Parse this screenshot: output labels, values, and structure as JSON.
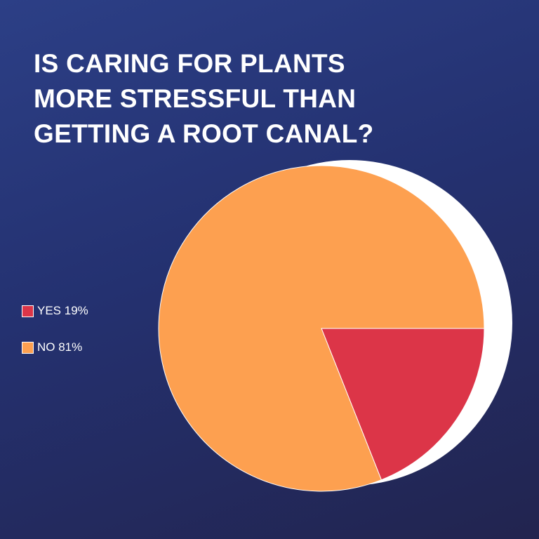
{
  "chart_data": {
    "type": "pie",
    "title": "IS CARING FOR PLANTS MORE STRESSFUL THAN GETTING A ROOT CANAL?",
    "title_lines": [
      "IS CARING FOR PLANTS",
      "MORE STRESSFUL THAN",
      "GETTING A ROOT CANAL?"
    ],
    "categories": [
      "YES",
      "NO"
    ],
    "values": [
      19,
      81
    ],
    "unit": "%",
    "colors": [
      "#dc3548",
      "#fda050"
    ],
    "legend_labels": [
      "YES 19%",
      "NO  81%"
    ],
    "legend_position": "left",
    "shadow_color": "#ffffff",
    "background_colors": [
      "#2c3f86",
      "#22244f"
    ]
  }
}
